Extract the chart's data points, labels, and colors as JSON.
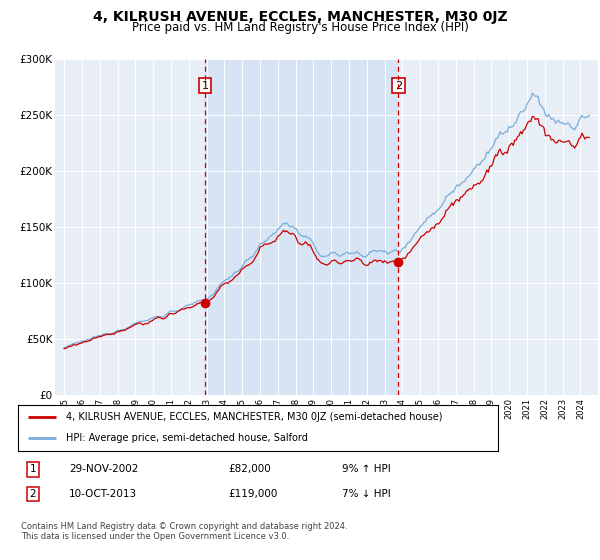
{
  "title": "4, KILRUSH AVENUE, ECCLES, MANCHESTER, M30 0JZ",
  "subtitle": "Price paid vs. HM Land Registry's House Price Index (HPI)",
  "property_label": "4, KILRUSH AVENUE, ECCLES, MANCHESTER, M30 0JZ (semi-detached house)",
  "hpi_label": "HPI: Average price, semi-detached house, Salford",
  "property_color": "#cc0000",
  "hpi_color": "#7aaddb",
  "shade_color": "#d6e4f3",
  "background_color": "#e8eef5",
  "annotation1": {
    "num": "1",
    "date": "29-NOV-2002",
    "price": "£82,000",
    "pct": "9% ↑ HPI"
  },
  "annotation2": {
    "num": "2",
    "date": "10-OCT-2013",
    "price": "£119,000",
    "pct": "7% ↓ HPI"
  },
  "footer": "Contains HM Land Registry data © Crown copyright and database right 2024.\nThis data is licensed under the Open Government Licence v3.0.",
  "ylim": [
    0,
    300000
  ],
  "yticks": [
    0,
    50000,
    100000,
    150000,
    200000,
    250000,
    300000
  ],
  "ytick_labels": [
    "£0",
    "£50K",
    "£100K",
    "£150K",
    "£200K",
    "£250K",
    "£300K"
  ],
  "vline1_x": 2002.91,
  "vline2_x": 2013.78,
  "sale1_price": 82000,
  "sale2_price": 119000,
  "xlim_left": 1994.5,
  "xlim_right": 2025.0
}
